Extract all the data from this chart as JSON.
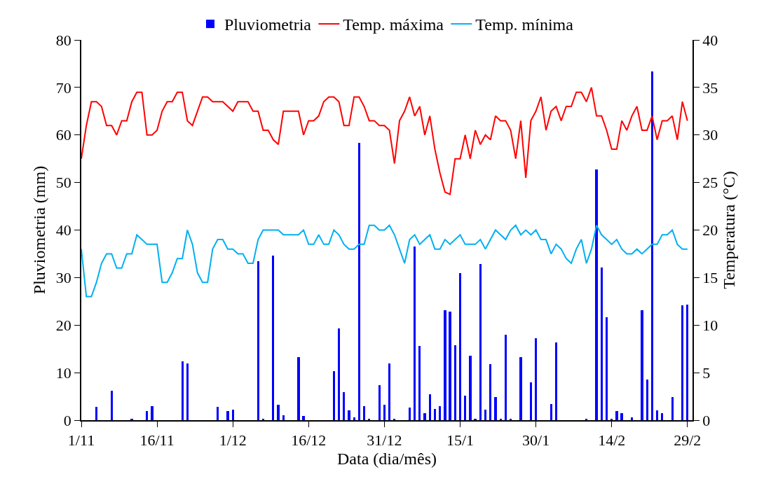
{
  "chart_data": {
    "type": "bar",
    "xlabel": "Data (dia/mês)",
    "ylabel": "Pluviometria (mm)",
    "y2label": "Temperatura (°C)",
    "legend": "top",
    "categories": [
      "1/11",
      null,
      null,
      null,
      null,
      null,
      null,
      null,
      null,
      null,
      null,
      null,
      null,
      null,
      null,
      "16/11",
      null,
      null,
      null,
      null,
      null,
      null,
      null,
      null,
      null,
      null,
      null,
      null,
      null,
      null,
      "1/12",
      null,
      null,
      null,
      null,
      null,
      null,
      null,
      null,
      null,
      null,
      null,
      null,
      null,
      null,
      "16/12",
      null,
      null,
      null,
      null,
      null,
      null,
      null,
      null,
      null,
      null,
      null,
      null,
      null,
      null,
      "31/12",
      null,
      null,
      null,
      null,
      null,
      null,
      null,
      null,
      null,
      null,
      null,
      null,
      null,
      null,
      "15/1",
      null,
      null,
      null,
      null,
      null,
      null,
      null,
      null,
      null,
      null,
      null,
      null,
      null,
      null,
      "30/1",
      null,
      null,
      null,
      null,
      null,
      null,
      null,
      null,
      null,
      null,
      null,
      null,
      null,
      null,
      "14/2",
      null,
      null,
      null,
      null,
      null,
      null,
      null,
      null,
      null,
      null,
      null,
      null,
      null,
      null,
      "29/2"
    ],
    "ylim": [
      0,
      80
    ],
    "yticks": [
      0,
      10,
      20,
      30,
      40,
      50,
      60,
      70,
      80
    ],
    "y2lim": [
      0,
      40
    ],
    "y2ticks": [
      0,
      5,
      10,
      15,
      20,
      25,
      30,
      35,
      40
    ],
    "series": [
      {
        "name": "Pluviometria",
        "color": "#0000ff",
        "values": [
          0,
          0,
          0,
          2.8,
          0,
          0,
          6.2,
          0,
          0,
          0,
          0.3,
          0,
          0,
          1.9,
          2.9,
          0,
          0,
          0,
          0,
          0,
          12.4,
          12,
          0,
          0,
          0,
          0,
          0,
          2.8,
          0,
          1.9,
          2.2,
          0,
          0,
          0,
          0,
          33.4,
          0.3,
          0,
          34.6,
          3.3,
          1.0,
          0,
          0,
          13.3,
          0.9,
          0,
          0,
          0,
          0,
          0,
          10.3,
          19.3,
          5.9,
          2.0,
          0.6,
          58.3,
          2.9,
          0.2,
          0,
          7.3,
          3.3,
          12.0,
          0.2,
          0,
          0,
          2.6,
          36.6,
          15.6,
          1.5,
          5.4,
          2.3,
          2.9,
          23.2,
          22.9,
          15.8,
          30.9,
          5.1,
          13.5,
          0.2,
          32.9,
          2.2,
          11.8,
          4.8,
          0.2,
          18.0,
          0.2,
          0,
          13.3,
          0,
          8.0,
          17.3,
          0,
          0,
          3.4,
          16.3,
          0,
          0,
          0,
          0,
          0,
          0.2,
          0,
          52.7,
          32.1,
          21.6,
          0.2,
          1.9,
          1.5,
          0,
          0.6,
          0,
          23.2,
          8.6,
          73.3,
          2.1,
          1.5,
          0,
          4.8,
          0,
          24.1,
          24.3
        ]
      },
      {
        "name": "Temp. máxima",
        "type": "line",
        "axis": "y2",
        "color": "#ff0000",
        "values": [
          27.5,
          31,
          33.5,
          33.5,
          33,
          31,
          31,
          30,
          31.5,
          31.5,
          33.5,
          34.5,
          34.5,
          30,
          30,
          30.5,
          32.5,
          33.5,
          33.5,
          34.5,
          34.5,
          31.5,
          31,
          32.5,
          34,
          34,
          33.5,
          33.5,
          33.5,
          33,
          32.5,
          33.5,
          33.5,
          33.5,
          32.5,
          32.5,
          30.5,
          30.5,
          29.5,
          29,
          32.5,
          32.5,
          32.5,
          32.5,
          30,
          31.5,
          31.5,
          32,
          33.5,
          34,
          34,
          33.5,
          31,
          31,
          34,
          34,
          33,
          31.5,
          31.5,
          31,
          31,
          30.5,
          27,
          31.5,
          32.5,
          34,
          32,
          33,
          30,
          32,
          28.5,
          26,
          24,
          23.75,
          27.5,
          27.5,
          30,
          27.5,
          30.5,
          29,
          30,
          29.5,
          32,
          31.5,
          31.5,
          30.5,
          27.5,
          31.5,
          25.5,
          31.5,
          32.5,
          34,
          30.5,
          32.5,
          33,
          31.5,
          33,
          33,
          34.5,
          34.5,
          33.5,
          35,
          32,
          32,
          30.5,
          28.5,
          28.5,
          31.5,
          30.5,
          32,
          33,
          30.5,
          30.5,
          32,
          29.5,
          31.5,
          31.5,
          32,
          29.5,
          33.5,
          31.5
        ]
      },
      {
        "name": "Temp. mínima",
        "type": "line",
        "axis": "y2",
        "color": "#00b0f0",
        "values": [
          18,
          13,
          13,
          14.5,
          16.5,
          17.5,
          17.5,
          16,
          16,
          17.5,
          17.5,
          19.5,
          19,
          18.5,
          18.5,
          18.5,
          14.5,
          14.5,
          15.5,
          17,
          17,
          20,
          18.5,
          15.5,
          14.5,
          14.5,
          18,
          19,
          19,
          18,
          18,
          17.5,
          17.5,
          16.5,
          16.5,
          19,
          20,
          20,
          20,
          20,
          19.5,
          19.5,
          19.5,
          19.5,
          20,
          18.5,
          18.5,
          19.5,
          18.5,
          18.5,
          20,
          19.5,
          18.5,
          18,
          18,
          18.5,
          18.5,
          20.5,
          20.5,
          20,
          20,
          20.5,
          19.5,
          18,
          16.5,
          19,
          19.5,
          18.5,
          19,
          19.5,
          18,
          18,
          19,
          18.5,
          19,
          19.5,
          18.5,
          18.5,
          18.5,
          19,
          18,
          19,
          20,
          19.5,
          19,
          20,
          20.5,
          19.5,
          20,
          19.5,
          20,
          19,
          19,
          17.5,
          18.5,
          18,
          17,
          16.5,
          18,
          19,
          16.5,
          18,
          20.5,
          19.5,
          19,
          18.5,
          19,
          18,
          17.5,
          17.5,
          18,
          17.5,
          18,
          18.5,
          18.5,
          19.5,
          19.5,
          20,
          18.5,
          18,
          18
        ]
      }
    ]
  }
}
